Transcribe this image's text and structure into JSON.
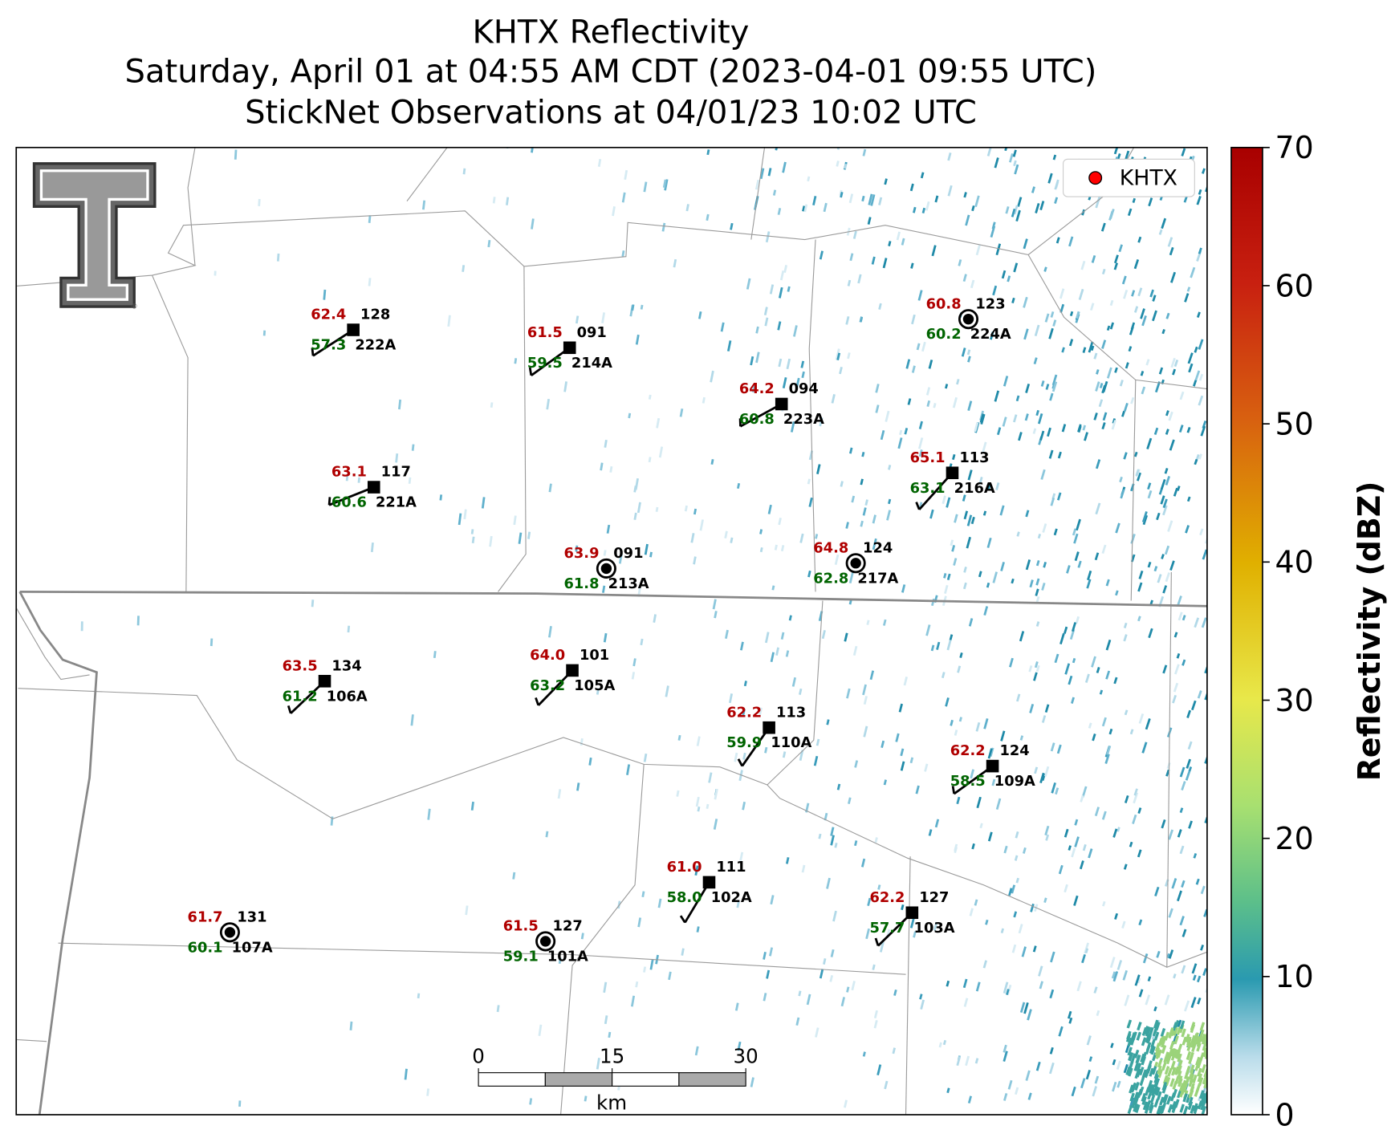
{
  "title_lines": [
    "KHTX Reflectivity",
    "Saturday, April 01 at 04:55 AM CDT (2023-04-01 09:55 UTC)",
    "StickNet Observations at 04/01/23 10:02 UTC"
  ],
  "legend": {
    "label": "KHTX",
    "color": "#ff0000"
  },
  "colorbar": {
    "label": "Reflectivity (dBZ)",
    "lim": [
      0,
      70
    ],
    "ticks": [
      0,
      10,
      20,
      30,
      40,
      50,
      60,
      70
    ]
  },
  "scale_bar": {
    "ticks": [
      0,
      15,
      30
    ],
    "unit": "km"
  },
  "stations": [
    {
      "temp": "62.4",
      "dewpoint": "57.3",
      "value": "128",
      "id": "222A"
    },
    {
      "temp": "61.5",
      "dewpoint": "59.5",
      "value": "091",
      "id": "214A"
    },
    {
      "temp": "64.2",
      "dewpoint": "60.8",
      "value": "094",
      "id": "223A"
    },
    {
      "temp": "60.8",
      "dewpoint": "60.2",
      "value": "123",
      "id": "224A"
    },
    {
      "temp": "63.1",
      "dewpoint": "60.6",
      "value": "117",
      "id": "221A"
    },
    {
      "temp": "65.1",
      "dewpoint": "63.1",
      "value": "113",
      "id": "216A"
    },
    {
      "temp": "63.9",
      "dewpoint": "61.8",
      "value": "091",
      "id": "213A"
    },
    {
      "temp": "64.8",
      "dewpoint": "62.8",
      "value": "124",
      "id": "217A"
    },
    {
      "temp": "63.5",
      "dewpoint": "61.2",
      "value": "134",
      "id": "106A"
    },
    {
      "temp": "64.0",
      "dewpoint": "63.2",
      "value": "101",
      "id": "105A"
    },
    {
      "temp": "62.2",
      "dewpoint": "59.9",
      "value": "113",
      "id": "110A"
    },
    {
      "temp": "62.2",
      "dewpoint": "58.5",
      "value": "124",
      "id": "109A"
    },
    {
      "temp": "61.0",
      "dewpoint": "58.0",
      "value": "111",
      "id": "102A"
    },
    {
      "temp": "62.2",
      "dewpoint": "57.7",
      "value": "127",
      "id": "103A"
    },
    {
      "temp": "61.7",
      "dewpoint": "60.1",
      "value": "131",
      "id": "107A"
    },
    {
      "temp": "61.5",
      "dewpoint": "59.1",
      "value": "127",
      "id": "101A"
    }
  ]
}
